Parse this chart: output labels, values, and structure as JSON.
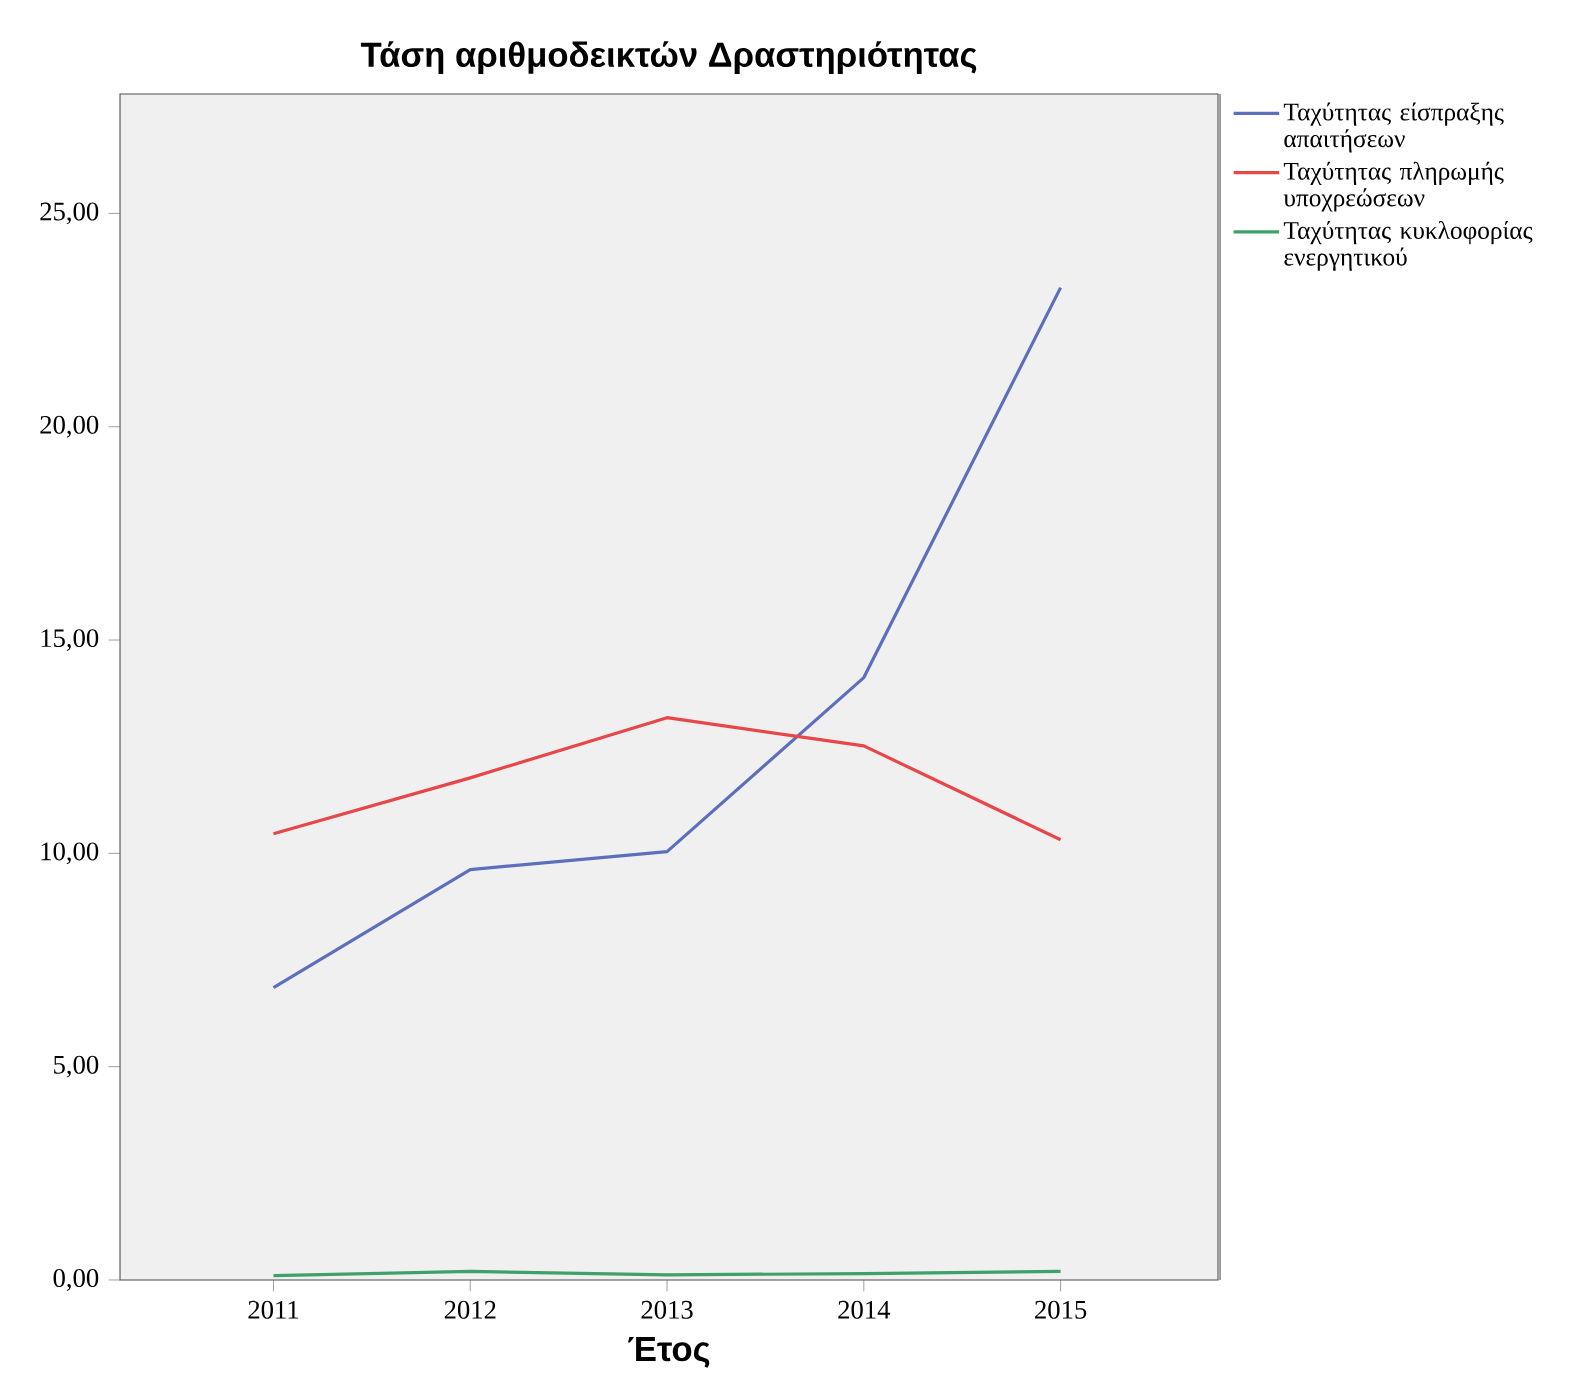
{
  "chart_data": {
    "type": "line",
    "title": "Τάση αριθμοδεικτών Δραστηριότητας",
    "xlabel": "Έτος",
    "categories": [
      "2011",
      "2012",
      "2013",
      "2014",
      "2015"
    ],
    "series": [
      {
        "name": "Ταχύτητας είσπραξης απαιτήσεων",
        "color": "#5b6fbd",
        "values": [
          6.85,
          9.62,
          10.04,
          14.12,
          23.26
        ]
      },
      {
        "name": "Ταχύτητας πληρωμής υποχρεώσεων",
        "color": "#e8474a",
        "values": [
          10.46,
          11.77,
          13.18,
          12.52,
          10.32
        ]
      },
      {
        "name": "Ταχύτητας κυκλοφορίας ενεργητικού",
        "color": "#3ea06a",
        "values": [
          0.1,
          0.2,
          0.12,
          0.15,
          0.2
        ]
      }
    ],
    "ylim": [
      0,
      27.8
    ],
    "yticks": [
      {
        "value": 0,
        "label": "0,00"
      },
      {
        "value": 5,
        "label": "5,00"
      },
      {
        "value": 10,
        "label": "10,00"
      },
      {
        "value": 15,
        "label": "15,00"
      },
      {
        "value": 20,
        "label": "20,00"
      },
      {
        "value": 25,
        "label": "25,00"
      }
    ],
    "legend": "top right",
    "grid": false,
    "marker": "none",
    "line_style": "solid"
  }
}
